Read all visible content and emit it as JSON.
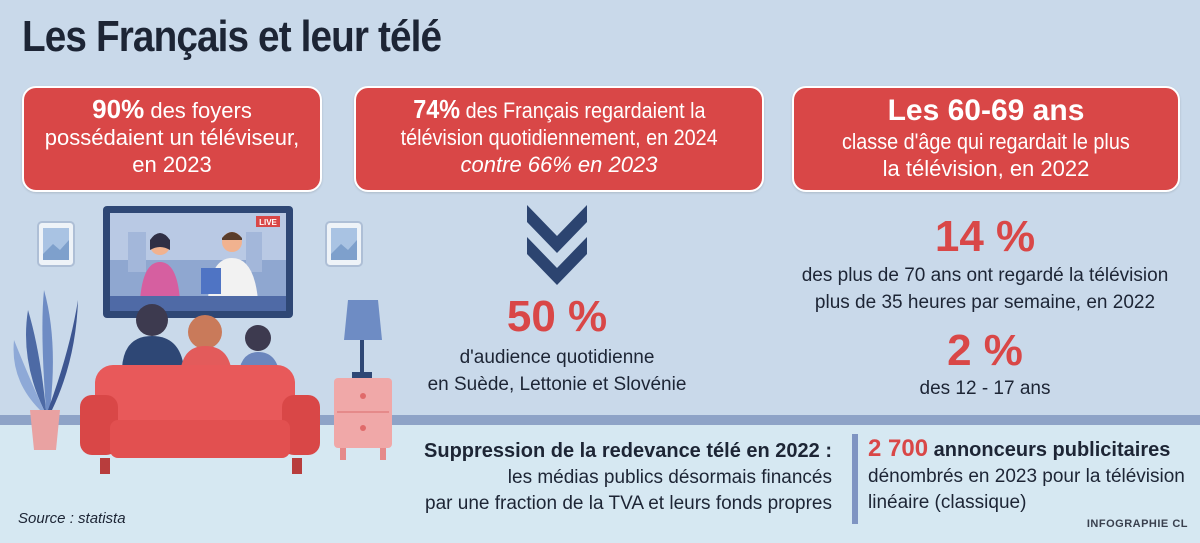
{
  "title": "Les Français et leur télé",
  "box1": {
    "highlight": "90%",
    "line1_rest": " des foyers",
    "line2": "possédaient un téléviseur,",
    "line3": "en 2023"
  },
  "box2": {
    "highlight": "74%",
    "line1_rest": " des Français regardaient la",
    "line2": "télévision quotidiennement, en 2024",
    "line3": "contre 66% en 2023"
  },
  "box3": {
    "headline": "Les 60-69 ans",
    "line2": "classe d'âge qui regardait le plus",
    "line3": "la télévision, en 2022"
  },
  "tv": {
    "live_label": "LIVE"
  },
  "stat_50": {
    "value": "50 %",
    "line1": "d'audience quotidienne",
    "line2": "en Suède, Lettonie et Slovénie"
  },
  "stat_14": {
    "value": "14 %",
    "line1": "des plus de 70 ans ont regardé la télévision",
    "line2": "plus de 35 heures par semaine, en 2022"
  },
  "stat_2": {
    "value": "2 %",
    "line1": "des 12 - 17 ans"
  },
  "redevance": {
    "heading": "Suppression de la redevance télé en 2022 :",
    "line1": "les médias publics désormais financés",
    "line2": "par une fraction de la TVA et leurs fonds propres"
  },
  "annonceurs": {
    "value": "2 700",
    "label": " annonceurs publicitaires",
    "line1": "dénombrés en 2023 pour la télévision",
    "line2": "linéaire (classique)"
  },
  "source": "Source : statista",
  "credit": "INFOGRAPHIE CL",
  "colors": {
    "accent_red": "#d94747",
    "background": "#c9d9ea",
    "navy": "#2c4470"
  }
}
